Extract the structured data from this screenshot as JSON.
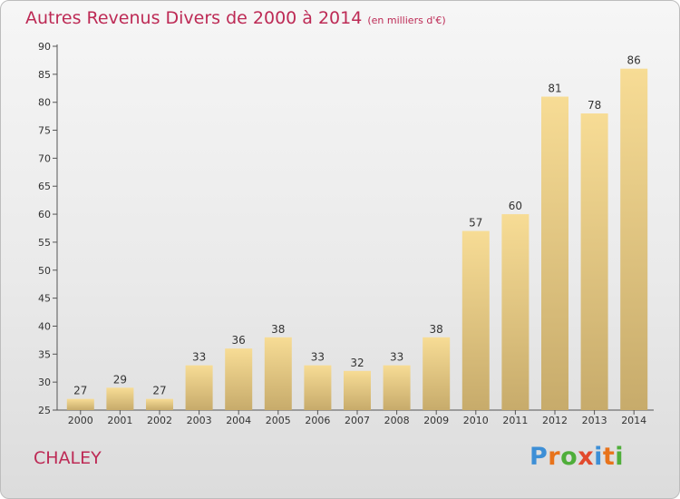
{
  "header": {
    "title": "Autres Revenus Divers de 2000 à 2014",
    "unit_note": "(en milliers d'€)"
  },
  "footer": {
    "city": "CHALEY",
    "logo_text": "Proxiti"
  },
  "colors": {
    "title": "#bd2a55",
    "bar_light": "#f7dc95",
    "bar_dark": "#c7ab6b",
    "logo_letters": [
      "#3d8fd6",
      "#e8731b",
      "#4fae3a",
      "#e24a2d",
      "#3d8fd6",
      "#e8731b",
      "#4fae3a"
    ]
  },
  "chart_data": {
    "type": "bar",
    "title": "Autres Revenus Divers de 2000 à 2014",
    "subtitle": "(en milliers d'€)",
    "xlabel": "",
    "ylabel": "",
    "categories": [
      "2000",
      "2001",
      "2002",
      "2003",
      "2004",
      "2005",
      "2006",
      "2007",
      "2008",
      "2009",
      "2010",
      "2011",
      "2012",
      "2013",
      "2014"
    ],
    "values": [
      27,
      29,
      27,
      33,
      36,
      38,
      33,
      32,
      33,
      38,
      57,
      60,
      81,
      78,
      86
    ],
    "ylim": [
      25,
      90
    ],
    "yticks": [
      25,
      30,
      35,
      40,
      45,
      50,
      55,
      60,
      65,
      70,
      75,
      80,
      85,
      90
    ],
    "grid": false,
    "data_labels": true
  }
}
